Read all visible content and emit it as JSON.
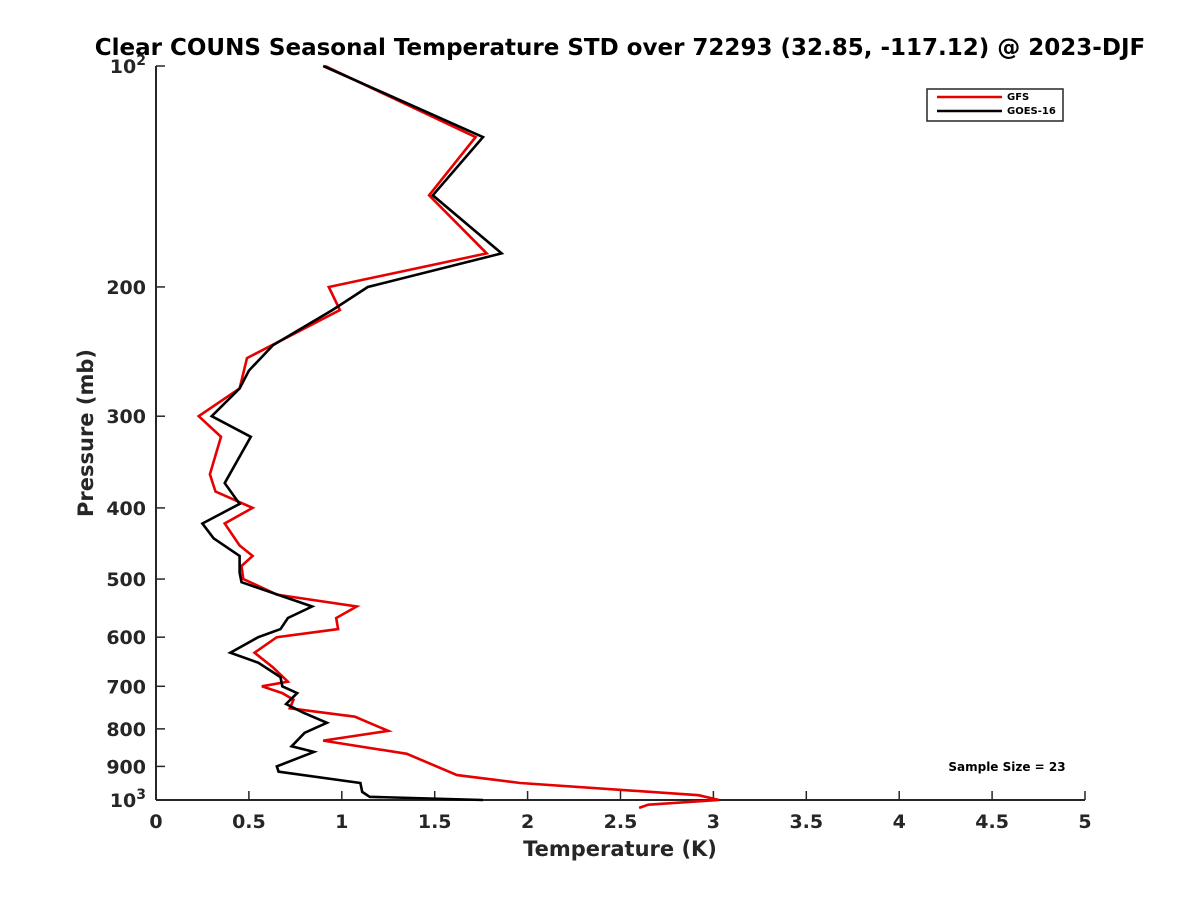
{
  "chart_data": {
    "type": "line",
    "title": "Clear COUNS Seasonal Temperature STD over 72293 (32.85, -117.12) @ 2023-DJF",
    "xlabel": "Temperature (K)",
    "ylabel": "Pressure (mb)",
    "xlim": [
      0,
      5
    ],
    "ylim": [
      100,
      1000
    ],
    "y_scale": "log",
    "y_reversed": true,
    "grid": false,
    "legend_position": "top-right",
    "x_ticks": [
      0,
      0.5,
      1,
      1.5,
      2,
      2.5,
      3,
      3.5,
      4,
      4.5,
      5
    ],
    "x_tick_labels": [
      "0",
      "0.5",
      "1",
      "1.5",
      "2",
      "2.5",
      "3",
      "3.5",
      "4",
      "4.5",
      "5"
    ],
    "y_ticks": [
      {
        "value": 100,
        "base": "10",
        "exp": "2"
      },
      {
        "value": 200,
        "label": "200"
      },
      {
        "value": 300,
        "label": "300"
      },
      {
        "value": 400,
        "label": "400"
      },
      {
        "value": 500,
        "label": "500"
      },
      {
        "value": 600,
        "label": "600"
      },
      {
        "value": 700,
        "label": "700"
      },
      {
        "value": 800,
        "label": "800"
      },
      {
        "value": 900,
        "label": "900"
      },
      {
        "value": 1000,
        "base": "10",
        "exp": "3"
      }
    ],
    "annotation": "Sample Size = 23",
    "series": [
      {
        "name": "GFS",
        "color": "#e60000",
        "points": [
          [
            0.91,
            100
          ],
          [
            1.72,
            125
          ],
          [
            1.47,
            150
          ],
          [
            1.78,
            180
          ],
          [
            0.93,
            200
          ],
          [
            0.99,
            215
          ],
          [
            0.49,
            250
          ],
          [
            0.45,
            275
          ],
          [
            0.23,
            300
          ],
          [
            0.35,
            320
          ],
          [
            0.29,
            360
          ],
          [
            0.32,
            380
          ],
          [
            0.52,
            400
          ],
          [
            0.37,
            420
          ],
          [
            0.45,
            450
          ],
          [
            0.52,
            465
          ],
          [
            0.46,
            480
          ],
          [
            0.47,
            500
          ],
          [
            0.65,
            525
          ],
          [
            1.08,
            545
          ],
          [
            0.97,
            565
          ],
          [
            0.98,
            585
          ],
          [
            0.65,
            600
          ],
          [
            0.53,
            630
          ],
          [
            0.63,
            660
          ],
          [
            0.71,
            690
          ],
          [
            0.57,
            700
          ],
          [
            0.68,
            715
          ],
          [
            0.74,
            730
          ],
          [
            0.72,
            750
          ],
          [
            1.07,
            770
          ],
          [
            1.25,
            805
          ],
          [
            0.9,
            830
          ],
          [
            1.35,
            865
          ],
          [
            1.62,
            925
          ],
          [
            1.96,
            948
          ],
          [
            2.92,
            985
          ],
          [
            3.03,
            1000
          ],
          [
            2.65,
            1015
          ],
          [
            2.6,
            1025
          ]
        ]
      },
      {
        "name": "GOES-16",
        "color": "#000000",
        "points": [
          [
            0.9,
            100
          ],
          [
            1.76,
            125
          ],
          [
            1.49,
            150
          ],
          [
            1.86,
            180
          ],
          [
            1.14,
            200
          ],
          [
            0.95,
            215
          ],
          [
            0.63,
            240
          ],
          [
            0.5,
            260
          ],
          [
            0.45,
            275
          ],
          [
            0.3,
            300
          ],
          [
            0.51,
            320
          ],
          [
            0.37,
            370
          ],
          [
            0.45,
            395
          ],
          [
            0.25,
            420
          ],
          [
            0.31,
            440
          ],
          [
            0.45,
            465
          ],
          [
            0.45,
            490
          ],
          [
            0.46,
            505
          ],
          [
            0.84,
            545
          ],
          [
            0.71,
            565
          ],
          [
            0.67,
            585
          ],
          [
            0.55,
            600
          ],
          [
            0.4,
            630
          ],
          [
            0.55,
            650
          ],
          [
            0.67,
            680
          ],
          [
            0.68,
            700
          ],
          [
            0.76,
            715
          ],
          [
            0.7,
            740
          ],
          [
            0.79,
            760
          ],
          [
            0.92,
            785
          ],
          [
            0.8,
            810
          ],
          [
            0.73,
            845
          ],
          [
            0.85,
            860
          ],
          [
            0.65,
            900
          ],
          [
            0.66,
            915
          ],
          [
            1.1,
            948
          ],
          [
            1.11,
            975
          ],
          [
            1.15,
            990
          ],
          [
            1.76,
            1000
          ]
        ]
      }
    ]
  }
}
